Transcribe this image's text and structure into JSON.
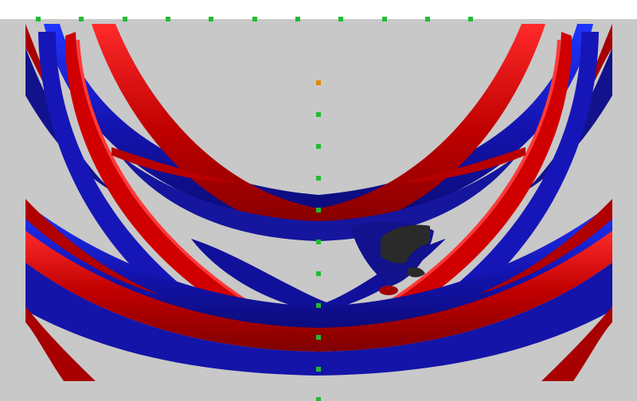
{
  "colors": {
    "page_background": "#ffffff",
    "viewport_background": "#c8c8c8",
    "positive_wave_red": "#b00000",
    "positive_wave_red_highlight": "#ff1a1a",
    "negative_wave_blue": "#10108a",
    "negative_wave_blue_highlight": "#1a2cff",
    "anomaly_dark": "#2a2a2a",
    "marker_green": "#22bb33",
    "marker_orange": "#e08a00"
  },
  "markers": {
    "top_row_count": 11,
    "vertical_line_count": 11
  },
  "scene": {
    "description_icon": "wavefield-snapshot-icon"
  }
}
